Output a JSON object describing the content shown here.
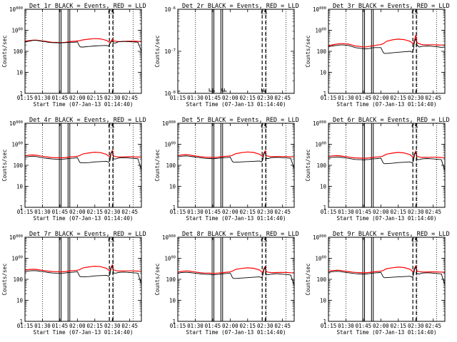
{
  "chart_data": {
    "type": "line",
    "figure": "Rear-segment detector lightcurves (3 x 3 panels)",
    "series_legend": {
      "events": {
        "name": "Events",
        "color": "#000000"
      },
      "lld": {
        "name": "LLD",
        "color": "#ff0000"
      }
    },
    "ylabel": "Counts/sec",
    "xlabel": "Start Time (07-Jan-13 01:14:40)",
    "xlim_minutes": [
      0,
      100
    ],
    "x_tick_minutes": [
      0,
      15,
      30,
      45,
      60,
      75,
      90
    ],
    "x_tick_labels": [
      "01:15",
      "01:30",
      "01:45",
      "02:00",
      "02:15",
      "02:30",
      "02:45"
    ],
    "dotted_vlines_minutes": [
      15,
      76,
      93
    ],
    "solid_vlines_minutes": [
      29.5,
      31,
      37,
      38.5
    ],
    "dashed_vlines_minutes": [
      72.5,
      75.5
    ],
    "time_minutes": [
      0,
      3,
      7,
      10,
      13,
      17,
      20,
      23,
      27,
      29,
      30,
      32,
      35,
      37,
      40,
      42,
      44,
      45,
      47,
      48,
      50,
      55,
      60,
      65,
      70,
      72,
      73,
      74,
      75,
      76,
      78,
      80,
      82,
      85,
      88,
      90,
      93,
      95,
      97,
      100
    ],
    "panels": [
      {
        "title": "Det 1r BLACK = Events, RED = LLD",
        "ylim": [
          1,
          10000
        ],
        "y_ticks": [
          1,
          10,
          100,
          1000,
          10000
        ],
        "y_tick_labels": [
          "1",
          "10",
          "100",
          "1000",
          "10000"
        ],
        "events": [
          270,
          300,
          330,
          330,
          310,
          290,
          270,
          260,
          255,
          255,
          250,
          255,
          260,
          265,
          270,
          270,
          275,
          280,
          170,
          160,
          160,
          170,
          180,
          185,
          190,
          175,
          230,
          280,
          310,
          250,
          250,
          280,
          290,
          295,
          290,
          285,
          280,
          275,
          270,
          100
        ],
        "lld": [
          300,
          320,
          340,
          340,
          320,
          300,
          285,
          270,
          265,
          262,
          260,
          262,
          270,
          280,
          295,
          300,
          305,
          310,
          320,
          330,
          350,
          380,
          400,
          390,
          330,
          280,
          260,
          300,
          380,
          310,
          300,
          290,
          290,
          295,
          300,
          300,
          300,
          300,
          295,
          290
        ],
        "markers": [
          "CS"
        ]
      },
      {
        "title": "Det 2r BLACK = Events, RED = LLD",
        "ylim": [
          1e-08,
          1e-06
        ],
        "y_ticks": [
          1e-08,
          1e-07,
          1e-06
        ],
        "y_tick_labels": [
          "10-8",
          "10-7",
          "10-6"
        ],
        "events": [],
        "lld": [],
        "segments_at_ymin_minutes": [
          [
            0,
            2
          ],
          [
            27,
            29
          ],
          [
            30,
            32
          ],
          [
            38,
            40
          ],
          [
            40,
            42
          ],
          [
            72,
            74
          ],
          [
            74,
            76
          ]
        ],
        "markers": [
          "CS"
        ]
      },
      {
        "title": "Det 3r BLACK = Events, RED = LLD",
        "ylim": [
          1,
          10000
        ],
        "y_ticks": [
          1,
          10,
          100,
          1000,
          10000
        ],
        "y_tick_labels": [
          "1",
          "10",
          "100",
          "1000",
          "10000"
        ],
        "events": [
          160,
          180,
          190,
          200,
          200,
          190,
          170,
          150,
          140,
          135,
          130,
          130,
          135,
          145,
          150,
          150,
          150,
          150,
          90,
          80,
          80,
          85,
          90,
          95,
          100,
          90,
          120,
          300,
          400,
          200,
          160,
          170,
          175,
          180,
          175,
          170,
          165,
          160,
          155,
          160
        ],
        "lld": [
          180,
          200,
          220,
          230,
          230,
          220,
          200,
          180,
          170,
          165,
          160,
          162,
          170,
          180,
          190,
          200,
          205,
          210,
          230,
          250,
          300,
          350,
          380,
          360,
          300,
          250,
          230,
          350,
          600,
          260,
          230,
          210,
          205,
          205,
          205,
          205,
          200,
          200,
          198,
          195
        ],
        "markers": [
          "CS"
        ]
      },
      {
        "title": "Det 4r BLACK = Events, RED = LLD",
        "ylim": [
          1,
          10000
        ],
        "y_ticks": [
          1,
          10,
          100,
          1000,
          10000
        ],
        "y_tick_labels": [
          "1",
          "10",
          "100",
          "1000",
          "10000"
        ],
        "events": [
          240,
          260,
          270,
          260,
          240,
          220,
          210,
          200,
          195,
          195,
          190,
          195,
          200,
          210,
          215,
          220,
          225,
          230,
          140,
          130,
          130,
          135,
          145,
          150,
          155,
          140,
          170,
          380,
          450,
          200,
          200,
          220,
          225,
          230,
          225,
          220,
          215,
          210,
          205,
          60
        ],
        "lld": [
          280,
          300,
          310,
          300,
          280,
          260,
          245,
          235,
          230,
          228,
          226,
          228,
          235,
          245,
          255,
          260,
          265,
          270,
          290,
          310,
          350,
          390,
          420,
          400,
          330,
          270,
          250,
          400,
          500,
          280,
          260,
          250,
          250,
          252,
          255,
          255,
          255,
          250,
          248,
          245
        ],
        "markers": [
          "CS"
        ]
      },
      {
        "title": "Det 5r BLACK = Events, RED = LLD",
        "ylim": [
          1,
          10000
        ],
        "y_ticks": [
          1,
          10,
          100,
          1000,
          10000
        ],
        "y_tick_labels": [
          "1",
          "10",
          "100",
          "1000",
          "10000"
        ],
        "events": [
          250,
          270,
          280,
          270,
          255,
          240,
          225,
          215,
          210,
          210,
          205,
          210,
          215,
          225,
          230,
          235,
          240,
          245,
          150,
          140,
          140,
          145,
          150,
          155,
          160,
          145,
          180,
          350,
          420,
          210,
          210,
          230,
          235,
          240,
          235,
          230,
          225,
          220,
          215,
          70
        ],
        "lld": [
          290,
          310,
          320,
          310,
          290,
          270,
          255,
          245,
          240,
          238,
          236,
          238,
          245,
          255,
          265,
          270,
          275,
          280,
          300,
          320,
          360,
          400,
          430,
          410,
          340,
          280,
          260,
          380,
          480,
          290,
          270,
          260,
          258,
          260,
          262,
          262,
          262,
          258,
          255,
          252
        ],
        "markers": [
          "CS"
        ]
      },
      {
        "title": "Det 6r BLACK = Events, RED = LLD",
        "ylim": [
          1,
          10000
        ],
        "y_ticks": [
          1,
          10,
          100,
          1000,
          10000
        ],
        "y_tick_labels": [
          "1",
          "10",
          "100",
          "1000",
          "10000"
        ],
        "events": [
          220,
          240,
          250,
          245,
          230,
          215,
          200,
          190,
          185,
          185,
          180,
          185,
          190,
          200,
          205,
          210,
          215,
          220,
          130,
          120,
          120,
          125,
          135,
          140,
          145,
          130,
          160,
          330,
          420,
          190,
          185,
          200,
          205,
          210,
          205,
          200,
          195,
          190,
          185,
          55
        ],
        "lld": [
          260,
          280,
          290,
          285,
          265,
          250,
          235,
          225,
          220,
          218,
          216,
          218,
          225,
          235,
          245,
          250,
          255,
          260,
          280,
          300,
          340,
          380,
          410,
          390,
          320,
          260,
          240,
          370,
          470,
          270,
          250,
          240,
          238,
          240,
          242,
          242,
          242,
          238,
          235,
          232
        ],
        "markers": [
          "CS"
        ]
      },
      {
        "title": "Det 7r BLACK = Events, RED = LLD",
        "ylim": [
          1,
          10000
        ],
        "y_ticks": [
          1,
          10,
          100,
          1000,
          10000
        ],
        "y_tick_labels": [
          "1",
          "10",
          "100",
          "1000",
          "10000"
        ],
        "events": [
          230,
          250,
          260,
          255,
          240,
          225,
          210,
          200,
          195,
          195,
          190,
          195,
          200,
          210,
          215,
          220,
          225,
          230,
          140,
          130,
          130,
          135,
          145,
          150,
          155,
          140,
          170,
          340,
          430,
          200,
          195,
          210,
          215,
          220,
          215,
          210,
          205,
          200,
          195,
          60
        ],
        "lld": [
          270,
          290,
          300,
          295,
          275,
          260,
          245,
          235,
          230,
          228,
          226,
          228,
          235,
          245,
          255,
          260,
          265,
          270,
          290,
          310,
          350,
          390,
          420,
          400,
          330,
          270,
          250,
          380,
          480,
          280,
          260,
          250,
          248,
          250,
          252,
          252,
          252,
          248,
          245,
          242
        ],
        "markers": [
          "CS"
        ]
      },
      {
        "title": "Det 8r BLACK = Events, RED = LLD",
        "ylim": [
          1,
          10000
        ],
        "y_ticks": [
          1,
          10,
          100,
          1000,
          10000
        ],
        "y_tick_labels": [
          "1",
          "10",
          "100",
          "1000",
          "10000"
        ],
        "events": [
          190,
          210,
          215,
          210,
          200,
          190,
          180,
          175,
          170,
          168,
          165,
          168,
          172,
          180,
          185,
          190,
          195,
          200,
          120,
          110,
          110,
          115,
          120,
          125,
          130,
          120,
          150,
          280,
          380,
          170,
          165,
          175,
          180,
          185,
          180,
          175,
          170,
          165,
          160,
          50
        ],
        "lld": [
          220,
          240,
          250,
          245,
          230,
          215,
          205,
          198,
          195,
          193,
          191,
          193,
          198,
          205,
          212,
          218,
          222,
          228,
          245,
          265,
          300,
          330,
          350,
          335,
          280,
          230,
          210,
          320,
          400,
          230,
          215,
          210,
          208,
          210,
          212,
          212,
          212,
          208,
          205,
          202
        ],
        "markers": [
          "CS"
        ]
      },
      {
        "title": "Det 9r BLACK = Events, RED = LLD",
        "ylim": [
          1,
          10000
        ],
        "y_ticks": [
          1,
          10,
          100,
          1000,
          10000
        ],
        "y_tick_labels": [
          "1",
          "10",
          "100",
          "1000",
          "10000"
        ],
        "events": [
          210,
          230,
          240,
          235,
          220,
          205,
          195,
          185,
          180,
          180,
          175,
          180,
          185,
          195,
          200,
          205,
          210,
          215,
          130,
          120,
          120,
          125,
          130,
          135,
          140,
          125,
          155,
          300,
          400,
          185,
          180,
          195,
          200,
          205,
          200,
          195,
          190,
          185,
          180,
          55
        ],
        "lld": [
          240,
          260,
          270,
          265,
          250,
          235,
          222,
          213,
          208,
          206,
          204,
          206,
          212,
          220,
          228,
          234,
          238,
          244,
          262,
          282,
          320,
          355,
          380,
          362,
          300,
          245,
          225,
          340,
          430,
          250,
          232,
          225,
          222,
          224,
          226,
          226,
          226,
          222,
          220,
          218
        ],
        "markers": [
          "CS"
        ]
      }
    ]
  }
}
